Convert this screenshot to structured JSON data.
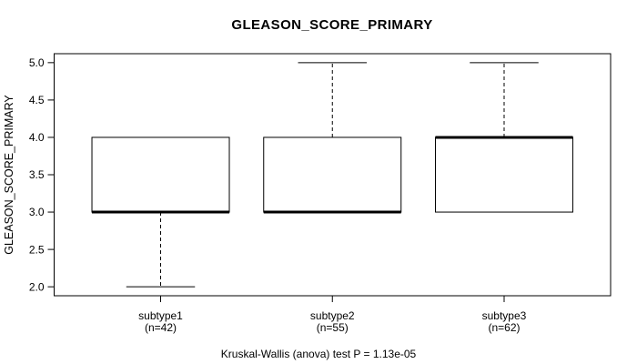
{
  "chart_data": {
    "type": "boxplot",
    "title": "GLEASON_SCORE_PRIMARY",
    "ylabel": "GLEASON_SCORE_PRIMARY",
    "caption": "Kruskal-Wallis (anova) test P = 1.13e-05",
    "ylim": [
      1.88,
      5.12
    ],
    "yticks": [
      "2.0",
      "2.5",
      "3.0",
      "3.5",
      "4.0",
      "4.5",
      "5.0"
    ],
    "grid": false,
    "legend": null,
    "groups": [
      {
        "label": "subtype1",
        "n_label": "(n=42)",
        "q1": 3.0,
        "median": 3.0,
        "q3": 4.0,
        "whisker_low": 2.0,
        "whisker_high": 4.0
      },
      {
        "label": "subtype2",
        "n_label": "(n=55)",
        "q1": 3.0,
        "median": 3.0,
        "q3": 4.0,
        "whisker_low": 3.0,
        "whisker_high": 5.0
      },
      {
        "label": "subtype3",
        "n_label": "(n=62)",
        "q1": 3.0,
        "median": 4.0,
        "q3": 4.0,
        "whisker_low": 3.0,
        "whisker_high": 5.0
      }
    ],
    "colors": {
      "line": "#000000",
      "box_fill": "#ffffff",
      "background": "#ffffff"
    }
  }
}
